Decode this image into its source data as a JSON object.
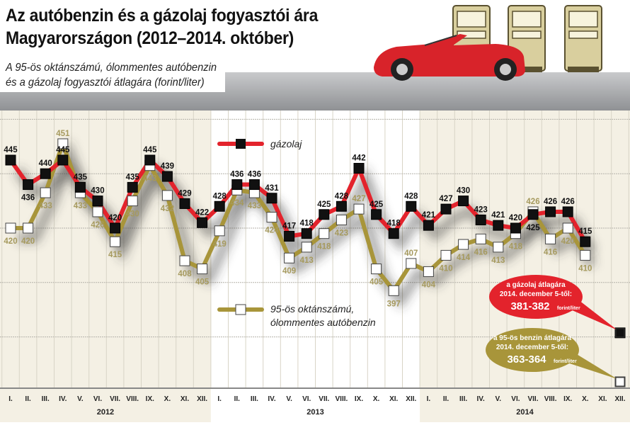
{
  "title_line1": "Az autóbenzin és a gázolaj fogyasztói ára",
  "title_line2": "Magyarországon (2012–2014. október)",
  "subtitle_line1": "A 95-ös oktánszámú, ólommentes autóbenzin",
  "subtitle_line2": "és a gázolaj fogyasztói átlagára (forint/liter)",
  "colors": {
    "diesel": "#e3232c",
    "petrol": "#a8953a",
    "band": "#f4f0e4",
    "petrol_label": "#a69a5e"
  },
  "chart_data": {
    "type": "line",
    "ylim": [
      358,
      462
    ],
    "yticks_gridlines": [
      380,
      400,
      420,
      440,
      460
    ],
    "grid": true,
    "legend_placement": "inside-center",
    "months": [
      "I.",
      "II.",
      "III.",
      "IV.",
      "V.",
      "VI.",
      "VII.",
      "VIII.",
      "IX.",
      "X.",
      "XI.",
      "XII."
    ],
    "years": [
      "2012",
      "2013",
      "2014"
    ],
    "series": [
      {
        "name": "gázolaj",
        "values": [
          445,
          436,
          440,
          445,
          435,
          430,
          420,
          435,
          445,
          439,
          429,
          422,
          428,
          436,
          436,
          431,
          417,
          418,
          425,
          428,
          442,
          425,
          418,
          428,
          421,
          427,
          430,
          423,
          421,
          420,
          425,
          426,
          426,
          415,
          null,
          381.5
        ]
      },
      {
        "name_line1": "95-ös oktánszámú,",
        "name_line2": "ólommentes autóbenzin",
        "values": [
          420,
          420,
          433,
          451,
          433,
          426,
          415,
          430,
          443,
          432,
          408,
          405,
          419,
          434,
          433,
          424,
          409,
          413,
          418,
          423,
          427,
          405,
          397,
          407,
          404,
          410,
          414,
          416,
          413,
          418,
          426,
          416,
          420,
          410,
          null,
          363.5
        ]
      }
    ],
    "annotations": [
      {
        "series": "gázolaj",
        "line1": "a gázolaj átlagára",
        "line2": "2014. december 5-től:",
        "value": "381-382",
        "unit": "forint/liter"
      },
      {
        "series": "petrol",
        "line1": "a 95-ös benzin átlagára",
        "line2": "2014. december 5-től:",
        "value": "363-364",
        "unit": "forint/liter"
      }
    ]
  }
}
